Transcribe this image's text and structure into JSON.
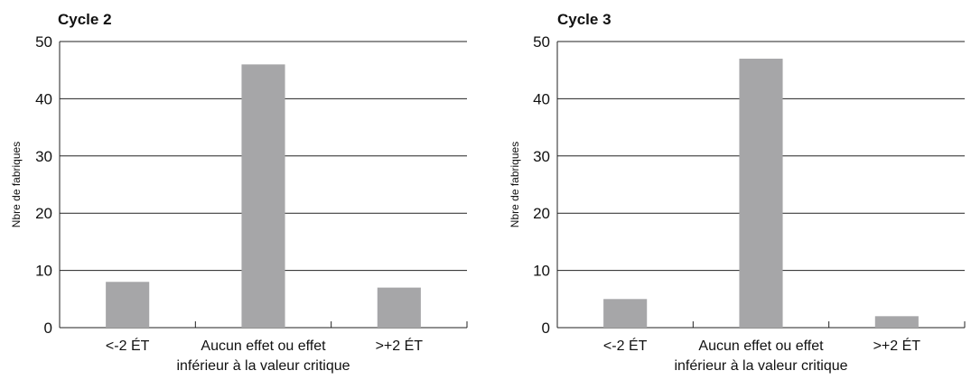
{
  "chart_data": [
    {
      "type": "bar",
      "title": "Cycle 2",
      "ylabel": "Nbre de fabriques",
      "xlabel": "",
      "categories": [
        "<-2 ÉT",
        "Aucun effet ou effet inférieur à la valeur critique",
        ">+2 ÉT"
      ],
      "category_lines": [
        [
          "<-2 ÉT"
        ],
        [
          "Aucun effet ou effet",
          "inférieur à la valeur critique"
        ],
        [
          ">+2 ÉT"
        ]
      ],
      "values": [
        8,
        46,
        7
      ],
      "ylim": [
        0,
        50
      ],
      "yticks": [
        0,
        10,
        20,
        30,
        40,
        50
      ],
      "grid": "horizontal",
      "bar_color": "#a6a6a8"
    },
    {
      "type": "bar",
      "title": "Cycle 3",
      "ylabel": "Nbre de fabriques",
      "xlabel": "",
      "categories": [
        "<-2 ÉT",
        "Aucun effet ou effet inférieur à la valeur critique",
        ">+2 ÉT"
      ],
      "category_lines": [
        [
          "<-2 ÉT"
        ],
        [
          "Aucun effet ou effet",
          "inférieur à la valeur critique"
        ],
        [
          ">+2 ÉT"
        ]
      ],
      "values": [
        5,
        47,
        2
      ],
      "ylim": [
        0,
        50
      ],
      "yticks": [
        0,
        10,
        20,
        30,
        40,
        50
      ],
      "grid": "horizontal",
      "bar_color": "#a6a6a8"
    }
  ]
}
